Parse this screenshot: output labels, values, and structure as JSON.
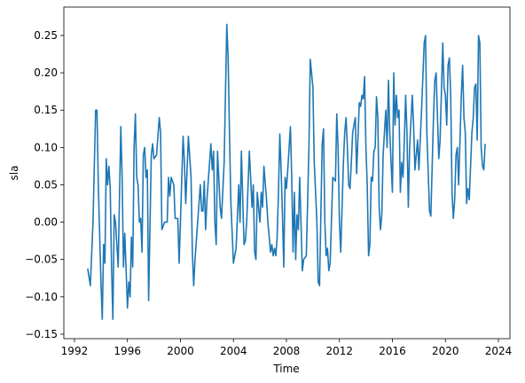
{
  "chart_data": {
    "type": "line",
    "xlabel": "Time",
    "ylabel": "sla",
    "x": [
      1993.0,
      1993.2,
      1993.4,
      1993.6,
      1993.7,
      1993.8,
      1994.0,
      1994.1,
      1994.2,
      1994.3,
      1994.4,
      1994.5,
      1994.6,
      1994.7,
      1994.8,
      1994.9,
      1995.0,
      1995.1,
      1995.3,
      1995.5,
      1995.6,
      1995.7,
      1995.8,
      1996.0,
      1996.1,
      1996.2,
      1996.3,
      1996.4,
      1996.5,
      1996.6,
      1996.7,
      1996.8,
      1996.9,
      1997.0,
      1997.1,
      1997.2,
      1997.3,
      1997.4,
      1997.5,
      1997.6,
      1997.8,
      1997.9,
      1998.0,
      1998.2,
      1998.4,
      1998.5,
      1998.6,
      1998.8,
      1999.0,
      1999.1,
      1999.2,
      1999.3,
      1999.5,
      1999.6,
      1999.8,
      1999.9,
      2000.0,
      2000.2,
      2000.3,
      2000.4,
      2000.6,
      2000.8,
      2000.9,
      2001.0,
      2001.1,
      2001.3,
      2001.5,
      2001.6,
      2001.7,
      2001.8,
      2001.9,
      2002.0,
      2002.2,
      2002.3,
      2002.4,
      2002.5,
      2002.6,
      2002.7,
      2002.8,
      2003.0,
      2003.1,
      2003.3,
      2003.5,
      2003.6,
      2003.7,
      2003.8,
      2004.0,
      2004.2,
      2004.4,
      2004.5,
      2004.6,
      2004.8,
      2004.9,
      2005.0,
      2005.2,
      2005.3,
      2005.4,
      2005.5,
      2005.6,
      2005.7,
      2005.8,
      2006.0,
      2006.1,
      2006.2,
      2006.3,
      2006.5,
      2006.6,
      2006.8,
      2006.9,
      2007.0,
      2007.1,
      2007.2,
      2007.3,
      2007.4,
      2007.5,
      2007.6,
      2007.7,
      2007.8,
      2007.9,
      2008.0,
      2008.1,
      2008.3,
      2008.4,
      2008.5,
      2008.6,
      2008.7,
      2008.8,
      2008.9,
      2009.0,
      2009.1,
      2009.2,
      2009.3,
      2009.5,
      2009.7,
      2009.8,
      2010.0,
      2010.1,
      2010.3,
      2010.4,
      2010.5,
      2010.7,
      2010.8,
      2010.9,
      2011.0,
      2011.1,
      2011.2,
      2011.3,
      2011.5,
      2011.7,
      2011.8,
      2011.9,
      2012.0,
      2012.1,
      2012.3,
      2012.4,
      2012.5,
      2012.6,
      2012.7,
      2012.8,
      2012.9,
      2013.0,
      2013.2,
      2013.3,
      2013.5,
      2013.6,
      2013.7,
      2013.8,
      2013.9,
      2014.0,
      2014.1,
      2014.2,
      2014.3,
      2014.4,
      2014.5,
      2014.6,
      2014.7,
      2014.8,
      2014.9,
      2015.0,
      2015.1,
      2015.2,
      2015.3,
      2015.5,
      2015.6,
      2015.7,
      2015.8,
      2016.0,
      2016.1,
      2016.2,
      2016.3,
      2016.4,
      2016.5,
      2016.6,
      2016.7,
      2016.8,
      2016.9,
      2017.0,
      2017.1,
      2017.2,
      2017.3,
      2017.5,
      2017.6,
      2017.7,
      2017.9,
      2018.0,
      2018.2,
      2018.4,
      2018.5,
      2018.6,
      2018.8,
      2018.9,
      2019.1,
      2019.2,
      2019.3,
      2019.5,
      2019.6,
      2019.8,
      2019.9,
      2020.0,
      2020.1,
      2020.2,
      2020.3,
      2020.4,
      2020.5,
      2020.6,
      2020.7,
      2020.8,
      2020.9,
      2021.0,
      2021.1,
      2021.2,
      2021.3,
      2021.4,
      2021.5,
      2021.6,
      2021.7,
      2021.8,
      2022.0,
      2022.1,
      2022.2,
      2022.3,
      2022.4,
      2022.5,
      2022.6,
      2022.7,
      2022.8,
      2022.9,
      2023.0
    ],
    "series": [
      {
        "color": "#1f77b4",
        "values": [
          -0.062,
          -0.085,
          0.0,
          0.15,
          0.15,
          0.05,
          -0.08,
          -0.13,
          -0.03,
          -0.055,
          0.085,
          0.05,
          0.075,
          0.045,
          -0.06,
          -0.13,
          0.01,
          0.0,
          -0.06,
          0.128,
          0.06,
          -0.06,
          -0.015,
          -0.115,
          -0.08,
          -0.1,
          -0.02,
          -0.06,
          0.1,
          0.145,
          0.06,
          0.05,
          0.0,
          0.005,
          -0.04,
          0.09,
          0.1,
          0.06,
          0.07,
          -0.105,
          0.09,
          0.105,
          0.085,
          0.09,
          0.14,
          0.12,
          -0.01,
          0.0,
          0.0,
          0.06,
          0.035,
          0.06,
          0.05,
          0.005,
          0.005,
          -0.055,
          0.0,
          0.115,
          0.08,
          0.025,
          0.115,
          0.06,
          -0.04,
          -0.085,
          -0.05,
          0.0,
          0.05,
          0.015,
          0.015,
          0.055,
          -0.01,
          0.03,
          0.08,
          0.105,
          0.07,
          0.095,
          0.0,
          -0.03,
          0.095,
          0.02,
          0.005,
          0.08,
          0.265,
          0.22,
          0.12,
          0.03,
          -0.055,
          -0.035,
          0.05,
          0.0,
          0.095,
          -0.03,
          -0.025,
          0.0,
          0.095,
          0.06,
          0.02,
          0.05,
          -0.04,
          -0.05,
          0.04,
          0.0,
          0.04,
          0.02,
          0.075,
          0.03,
          0.0,
          -0.04,
          -0.03,
          -0.045,
          -0.035,
          -0.045,
          -0.02,
          0.04,
          0.118,
          0.07,
          0.01,
          -0.06,
          0.06,
          0.045,
          0.07,
          0.128,
          0.06,
          -0.04,
          0.04,
          -0.05,
          0.01,
          -0.01,
          0.06,
          0.0,
          -0.065,
          -0.05,
          -0.045,
          0.1,
          0.218,
          0.18,
          0.08,
          0.0,
          -0.08,
          -0.085,
          0.105,
          0.125,
          0.0,
          -0.045,
          -0.035,
          -0.065,
          -0.055,
          0.06,
          0.055,
          0.145,
          0.1,
          0.0,
          -0.04,
          0.08,
          0.12,
          0.14,
          0.1,
          0.05,
          0.045,
          0.08,
          0.12,
          0.14,
          0.065,
          0.16,
          0.155,
          0.17,
          0.165,
          0.195,
          0.1,
          0.05,
          -0.045,
          -0.03,
          0.06,
          0.055,
          0.095,
          0.1,
          0.168,
          0.14,
          0.02,
          -0.01,
          0.01,
          0.09,
          0.15,
          0.1,
          0.19,
          0.12,
          0.04,
          0.2,
          0.13,
          0.17,
          0.14,
          0.15,
          0.04,
          0.08,
          0.06,
          0.11,
          0.17,
          0.12,
          0.02,
          0.1,
          0.17,
          0.13,
          0.07,
          0.11,
          0.07,
          0.15,
          0.24,
          0.25,
          0.12,
          0.015,
          0.008,
          0.14,
          0.19,
          0.2,
          0.085,
          0.11,
          0.24,
          0.18,
          0.17,
          0.13,
          0.21,
          0.22,
          0.17,
          0.04,
          0.005,
          0.03,
          0.09,
          0.1,
          0.05,
          0.11,
          0.17,
          0.21,
          0.14,
          0.12,
          0.025,
          0.045,
          0.03,
          0.12,
          0.14,
          0.18,
          0.185,
          0.11,
          0.25,
          0.24,
          0.1,
          0.075,
          0.07,
          0.105
        ]
      }
    ],
    "xlim": [
      1991.2,
      2024.87
    ],
    "ylim": [
      -0.156,
      0.288
    ],
    "xticks": [
      1992,
      1996,
      2000,
      2004,
      2008,
      2012,
      2016,
      2020,
      2024
    ],
    "yticks": [
      {
        "value": -0.15,
        "label": "−0.15"
      },
      {
        "value": -0.1,
        "label": "−0.10"
      },
      {
        "value": -0.05,
        "label": "−0.05"
      },
      {
        "value": 0,
        "label": "0.00"
      },
      {
        "value": 0.05,
        "label": "0.05"
      },
      {
        "value": 0.1,
        "label": "0.10"
      },
      0.15,
      {
        "value": 0.2,
        "label": "0.20"
      },
      0.25
    ]
  }
}
